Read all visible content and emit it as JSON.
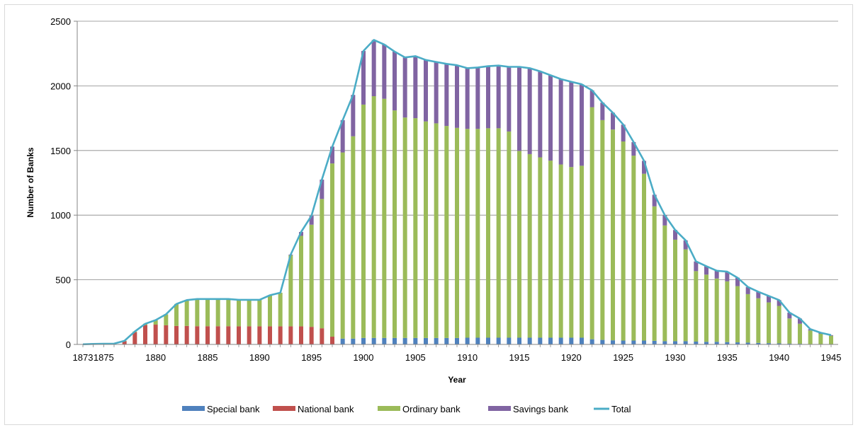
{
  "chart_data": {
    "type": "bar",
    "stacked": true,
    "title": "",
    "xlabel": "Year",
    "ylabel": "Number of Banks",
    "ylim": [
      0,
      2500
    ],
    "yticks": [
      0,
      500,
      1000,
      1500,
      2000,
      2500
    ],
    "xtick_labels": [
      "1873",
      "1875",
      "1880",
      "1885",
      "1890",
      "1895",
      "1900",
      "1905",
      "1910",
      "1915",
      "1920",
      "1925",
      "1930",
      "1935",
      "1940",
      "1945"
    ],
    "grid": "horizontal",
    "legend_position": "bottom",
    "categories": [
      1873,
      1874,
      1875,
      1876,
      1877,
      1878,
      1879,
      1880,
      1881,
      1882,
      1883,
      1884,
      1885,
      1886,
      1887,
      1888,
      1889,
      1890,
      1891,
      1892,
      1893,
      1894,
      1895,
      1896,
      1897,
      1898,
      1899,
      1900,
      1901,
      1902,
      1903,
      1904,
      1905,
      1906,
      1907,
      1908,
      1909,
      1910,
      1911,
      1912,
      1913,
      1914,
      1915,
      1916,
      1917,
      1918,
      1919,
      1920,
      1921,
      1922,
      1923,
      1924,
      1925,
      1926,
      1927,
      1928,
      1929,
      1930,
      1931,
      1932,
      1933,
      1934,
      1935,
      1936,
      1937,
      1938,
      1939,
      1940,
      1941,
      1942,
      1943,
      1944,
      1945
    ],
    "series": [
      {
        "name": "Special bank",
        "color": "#4F81BD",
        "values": [
          0,
          0,
          0,
          0,
          0,
          0,
          0,
          0,
          0,
          0,
          0,
          0,
          0,
          0,
          0,
          0,
          0,
          0,
          0,
          0,
          0,
          0,
          0,
          0,
          0,
          45,
          45,
          50,
          50,
          50,
          50,
          50,
          50,
          50,
          50,
          50,
          50,
          52,
          52,
          52,
          52,
          52,
          52,
          52,
          52,
          52,
          52,
          52,
          52,
          40,
          35,
          32,
          30,
          30,
          30,
          28,
          25,
          25,
          25,
          22,
          20,
          20,
          18,
          16,
          14,
          12,
          10,
          8,
          6,
          5,
          3,
          2,
          2
        ]
      },
      {
        "name": "National bank",
        "color": "#C0504D",
        "values": [
          1,
          4,
          4,
          4,
          25,
          95,
          150,
          153,
          148,
          143,
          143,
          141,
          141,
          141,
          141,
          140,
          140,
          140,
          140,
          140,
          140,
          140,
          136,
          125,
          60,
          0,
          0,
          0,
          0,
          0,
          0,
          0,
          0,
          0,
          0,
          0,
          0,
          0,
          0,
          0,
          0,
          0,
          0,
          0,
          0,
          0,
          0,
          0,
          0,
          0,
          0,
          0,
          0,
          0,
          0,
          0,
          0,
          0,
          0,
          0,
          0,
          0,
          0,
          0,
          0,
          0,
          0,
          0,
          0,
          0,
          0,
          0,
          0
        ]
      },
      {
        "name": "Ordinary bank",
        "color": "#9BBB59",
        "values": [
          0,
          0,
          1,
          2,
          3,
          5,
          10,
          35,
          85,
          170,
          200,
          210,
          210,
          210,
          210,
          205,
          205,
          205,
          240,
          260,
          550,
          700,
          790,
          1000,
          1340,
          1440,
          1565,
          1805,
          1870,
          1850,
          1760,
          1705,
          1700,
          1675,
          1660,
          1640,
          1625,
          1615,
          1615,
          1620,
          1620,
          1595,
          1445,
          1420,
          1395,
          1370,
          1340,
          1320,
          1330,
          1795,
          1700,
          1630,
          1540,
          1430,
          1290,
          1040,
          895,
          785,
          710,
          545,
          520,
          490,
          470,
          435,
          375,
          345,
          315,
          290,
          195,
          155,
          105,
          80,
          65
        ]
      },
      {
        "name": "Savings bank",
        "color": "#8064A2",
        "values": [
          0,
          0,
          0,
          0,
          0,
          0,
          0,
          0,
          0,
          0,
          0,
          0,
          0,
          0,
          0,
          0,
          0,
          0,
          0,
          0,
          5,
          30,
          70,
          150,
          130,
          250,
          320,
          415,
          435,
          420,
          455,
          465,
          480,
          475,
          475,
          480,
          485,
          470,
          475,
          480,
          485,
          500,
          650,
          665,
          665,
          660,
          660,
          660,
          630,
          130,
          135,
          130,
          130,
          105,
          100,
          90,
          80,
          75,
          70,
          75,
          65,
          60,
          75,
          65,
          55,
          50,
          50,
          45,
          45,
          40,
          10,
          8,
          5
        ]
      },
      {
        "name": "Total",
        "color": "#4BACC6",
        "values": [
          1,
          4,
          5,
          6,
          28,
          100,
          160,
          188,
          233,
          313,
          343,
          351,
          351,
          351,
          351,
          345,
          345,
          345,
          380,
          400,
          695,
          870,
          996,
          1275,
          1530,
          1735,
          1930,
          2270,
          2355,
          2320,
          2265,
          2220,
          2230,
          2200,
          2185,
          2170,
          2160,
          2137,
          2142,
          2152,
          2157,
          2147,
          2147,
          2137,
          2112,
          2082,
          2052,
          2032,
          2012,
          1965,
          1870,
          1792,
          1700,
          1565,
          1420,
          1158,
          1000,
          885,
          805,
          642,
          605,
          570,
          563,
          516,
          444,
          407,
          375,
          343,
          246,
          200,
          118,
          90,
          72
        ]
      }
    ]
  }
}
